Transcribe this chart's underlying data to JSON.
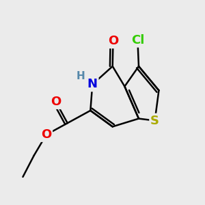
{
  "bg_color": "#ebebeb",
  "atom_colors": {
    "C": "#000000",
    "N": "#0000dd",
    "O": "#ee0000",
    "S": "#aaaa00",
    "Cl": "#33cc00",
    "H": "#5588aa"
  },
  "bond_color": "#000000",
  "bond_width": 1.8,
  "font_size": 13,
  "font_size_small": 11,
  "figsize": [
    3.0,
    3.0
  ],
  "dpi": 100
}
